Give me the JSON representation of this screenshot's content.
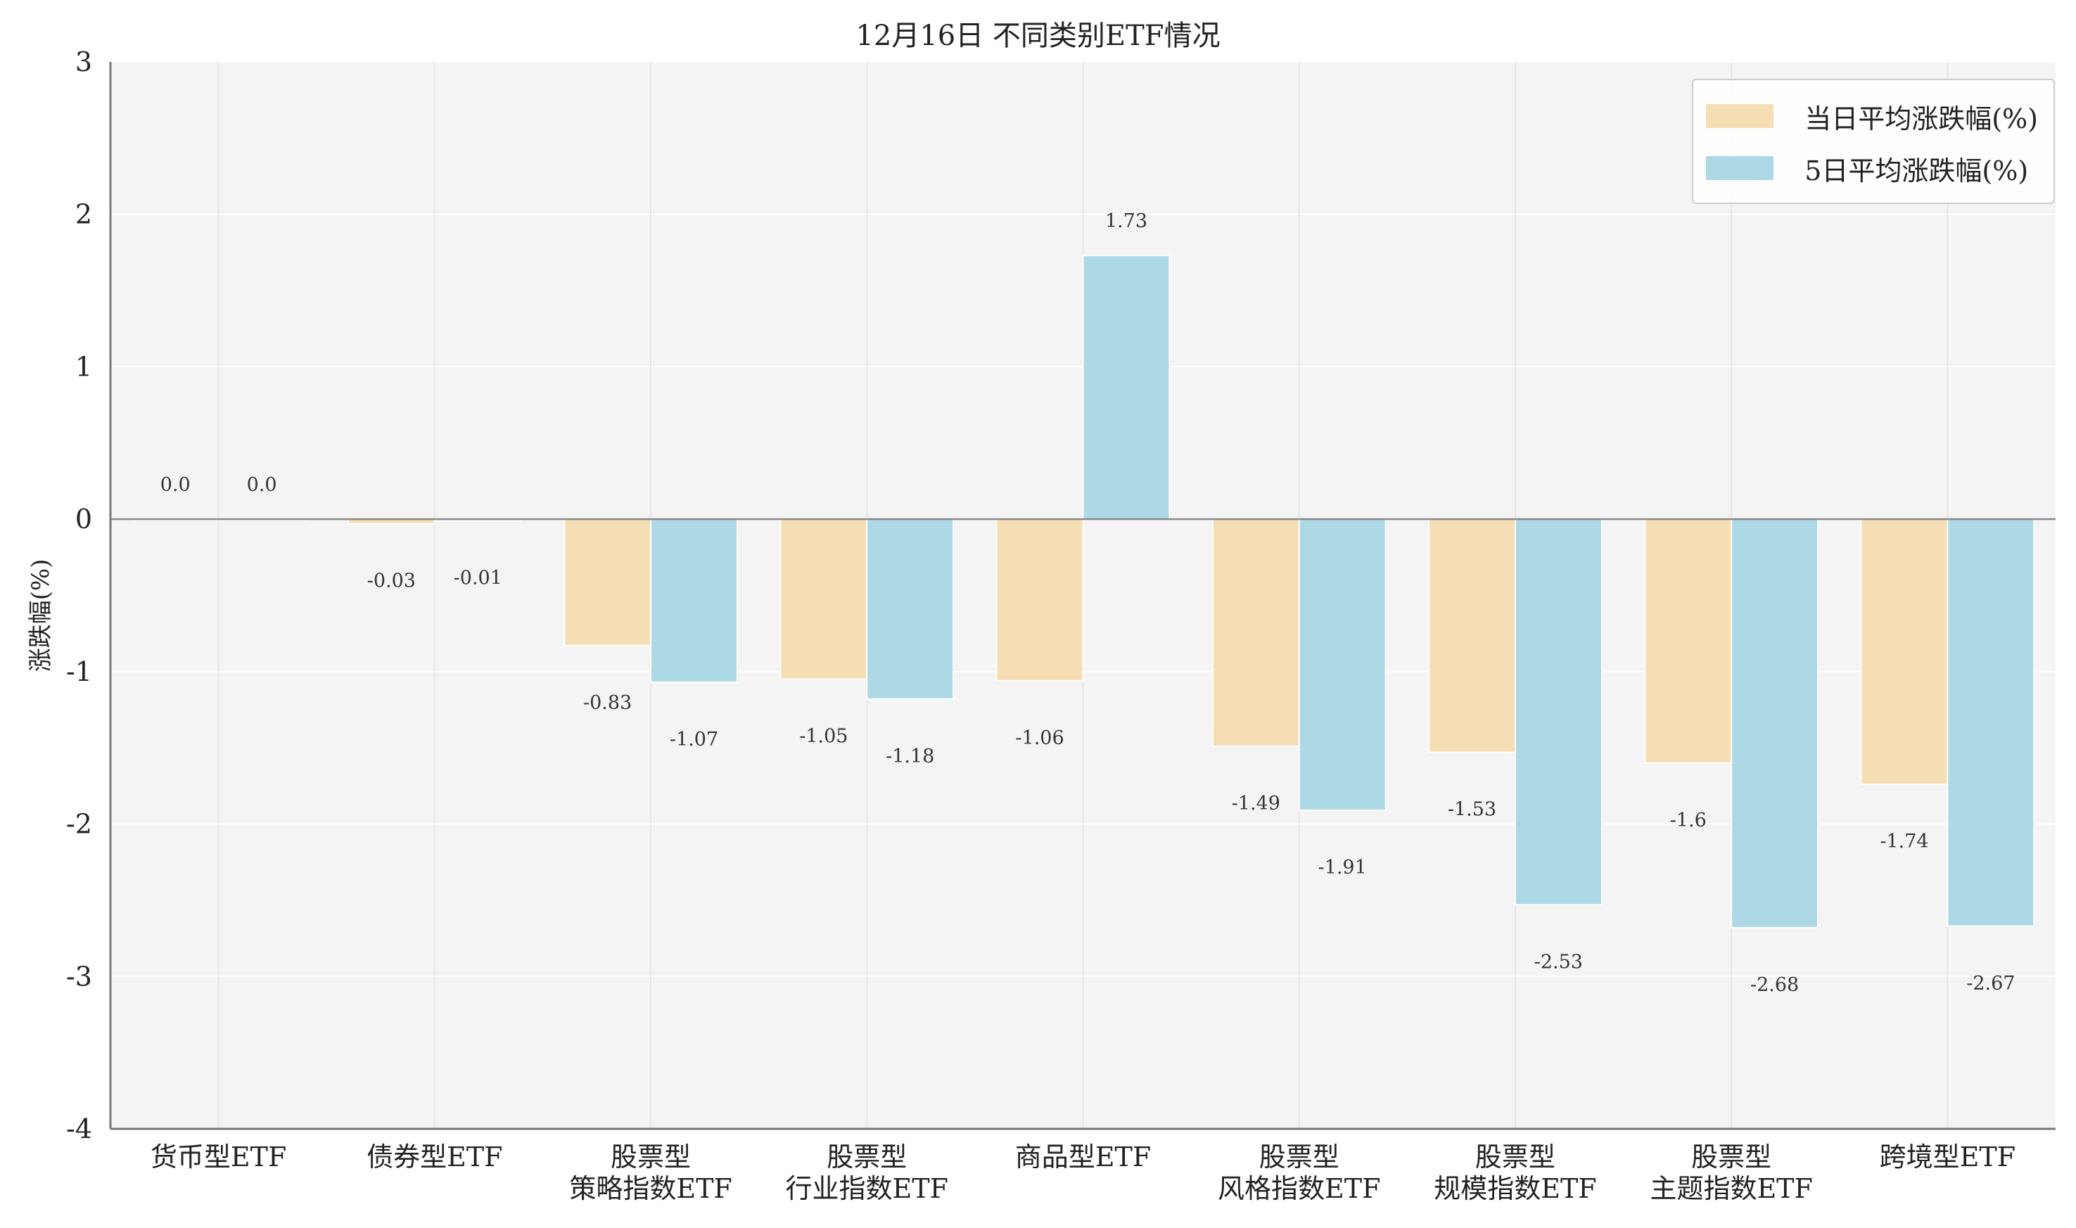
{
  "chart_data": {
    "type": "bar",
    "title": "12月16日 不同类别ETF情况",
    "xlabel": "",
    "ylabel": "涨跌幅(%)",
    "ylim": [
      -4,
      3
    ],
    "yticks": [
      3,
      2,
      1,
      0,
      -1,
      -2,
      -3,
      -4
    ],
    "grid": true,
    "legend_position": "top-right",
    "categories": [
      [
        "货币型ETF"
      ],
      [
        "债券型ETF"
      ],
      [
        "股票型",
        "策略指数ETF"
      ],
      [
        "股票型",
        "行业指数ETF"
      ],
      [
        "商品型ETF"
      ],
      [
        "股票型",
        "风格指数ETF"
      ],
      [
        "股票型",
        "规模指数ETF"
      ],
      [
        "股票型",
        "主题指数ETF"
      ],
      [
        "跨境型ETF"
      ]
    ],
    "series": [
      {
        "name": "当日平均涨跌幅(%)",
        "color": "#f5deb3",
        "values": [
          0.0,
          -0.03,
          -0.83,
          -1.05,
          -1.06,
          -1.49,
          -1.53,
          -1.6,
          -1.74
        ],
        "labels": [
          "0.0",
          "-0.03",
          "-0.83",
          "-1.05",
          "-1.06",
          "-1.49",
          "-1.53",
          "-1.6",
          "-1.74"
        ]
      },
      {
        "name": "5日平均涨跌幅(%)",
        "color": "#add8e6",
        "values": [
          0.0,
          -0.01,
          -1.07,
          -1.18,
          1.73,
          -1.91,
          -2.53,
          -2.68,
          -2.67
        ],
        "labels": [
          "0.0",
          "-0.01",
          "-1.07",
          "-1.18",
          "1.73",
          "-1.91",
          "-2.53",
          "-2.68",
          "-2.67"
        ]
      }
    ],
    "colors": {
      "plot_background": "#f4f4f4",
      "grid": "#ffffff",
      "zero_line": "#888888",
      "axis": "#777777"
    }
  }
}
